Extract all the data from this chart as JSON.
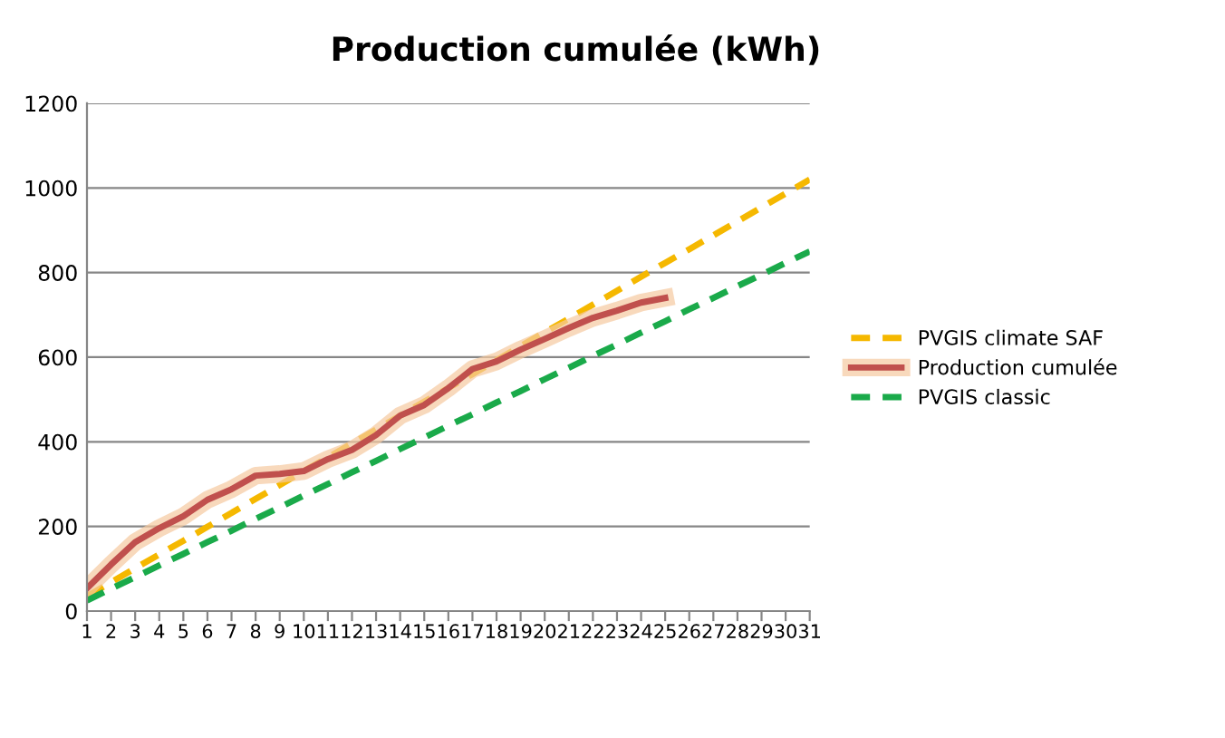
{
  "chart_data": {
    "type": "line",
    "title": "Production cumulée (kWh)",
    "categories": [
      "1",
      "2",
      "3",
      "4",
      "5",
      "6",
      "7",
      "8",
      "9",
      "10",
      "11",
      "12",
      "13",
      "14",
      "15",
      "16",
      "17",
      "18",
      "19",
      "20",
      "21",
      "22",
      "23",
      "24",
      "25",
      "26",
      "27",
      "28",
      "29",
      "30",
      "31"
    ],
    "series": [
      {
        "name": "PVGIS climate SAF",
        "color": "#f5b800",
        "line_style": "dashed",
        "values": [
          35,
          68,
          101,
          134,
          166,
          199,
          232,
          265,
          298,
          331,
          363,
          396,
          429,
          462,
          495,
          527,
          560,
          593,
          626,
          659,
          691,
          724,
          757,
          790,
          823,
          855,
          888,
          921,
          954,
          987,
          1020
        ]
      },
      {
        "name": "Production cumulée",
        "color": "#c0504d",
        "line_style": "solid",
        "values": [
          54,
          110,
          163,
          196,
          224,
          263,
          288,
          320,
          324,
          331,
          359,
          381,
          416,
          462,
          487,
          527,
          572,
          590,
          618,
          643,
          669,
          693,
          710,
          729,
          740,
          null,
          null,
          null,
          null,
          null,
          null
        ]
      },
      {
        "name": "PVGIS classic",
        "color": "#1aaa4a",
        "line_style": "dashed",
        "values": [
          25,
          53,
          80,
          108,
          135,
          163,
          190,
          218,
          245,
          273,
          300,
          328,
          355,
          383,
          410,
          438,
          465,
          493,
          520,
          548,
          575,
          603,
          630,
          658,
          685,
          713,
          740,
          768,
          795,
          823,
          850
        ]
      }
    ],
    "ylim": [
      0,
      1200
    ],
    "yticks": [
      0,
      200,
      400,
      600,
      800,
      1000,
      1200
    ],
    "grid": "y",
    "legend": "right",
    "marker": "none"
  }
}
